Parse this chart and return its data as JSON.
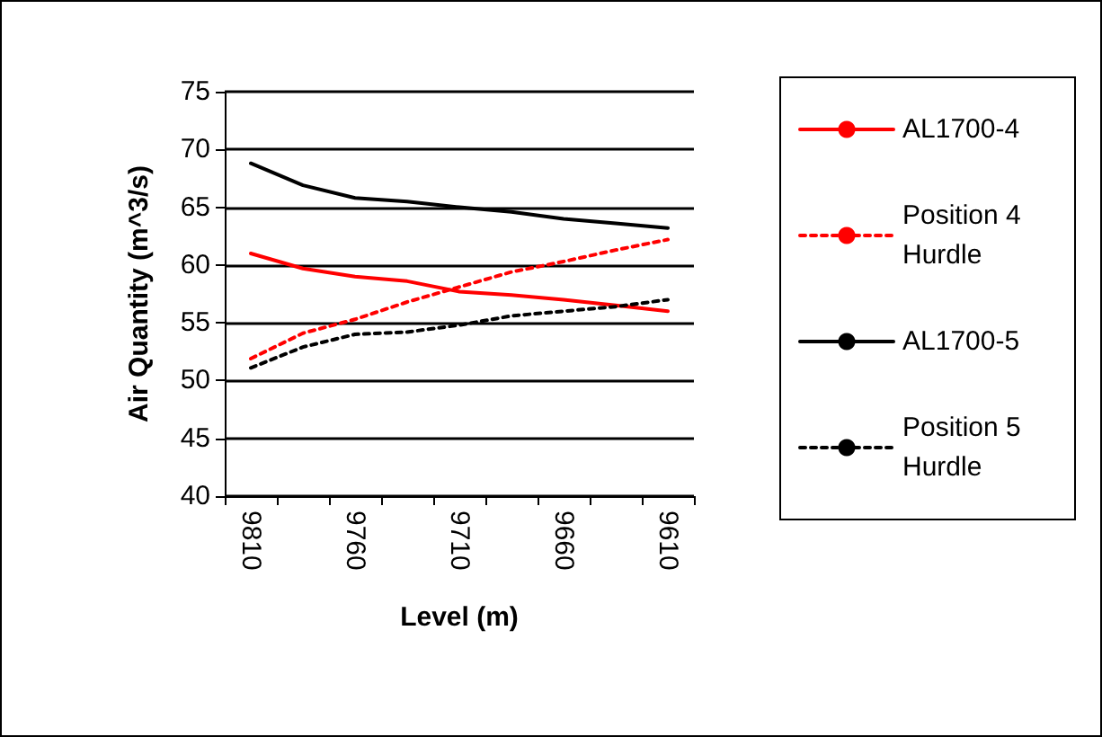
{
  "chart_data": {
    "type": "line",
    "xlabel": "Level (m)",
    "ylabel": "Air Quantity (m^3/s)",
    "categories": [
      "9810",
      null,
      "9760",
      null,
      "9710",
      null,
      "9660",
      null,
      "9610"
    ],
    "ylim": [
      40,
      75
    ],
    "yticks": [
      40,
      45,
      50,
      55,
      60,
      65,
      70,
      75
    ],
    "grid": "y",
    "legend": "right",
    "marker": "none",
    "series": [
      {
        "name": "AL1700-4",
        "color": "#ff0000",
        "line_style": "solid",
        "values": [
          61.0,
          59.7,
          59.0,
          58.6,
          57.7,
          57.4,
          57.0,
          56.5,
          56.0
        ]
      },
      {
        "name": "Position 4 Hurdle",
        "color": "#ff0000",
        "line_style": "dotted",
        "values": [
          51.9,
          54.1,
          55.3,
          56.8,
          58.1,
          59.4,
          60.3,
          61.3,
          62.2
        ]
      },
      {
        "name": "AL1700-5",
        "color": "#000000",
        "line_style": "solid",
        "values": [
          68.8,
          66.9,
          65.8,
          65.5,
          65.0,
          64.6,
          64.0,
          63.6,
          63.2
        ]
      },
      {
        "name": "Position 5 Hurdle",
        "color": "#000000",
        "line_style": "dotted",
        "values": [
          51.1,
          52.9,
          54.0,
          54.2,
          54.8,
          55.6,
          56.0,
          56.4,
          57.0
        ]
      }
    ]
  }
}
